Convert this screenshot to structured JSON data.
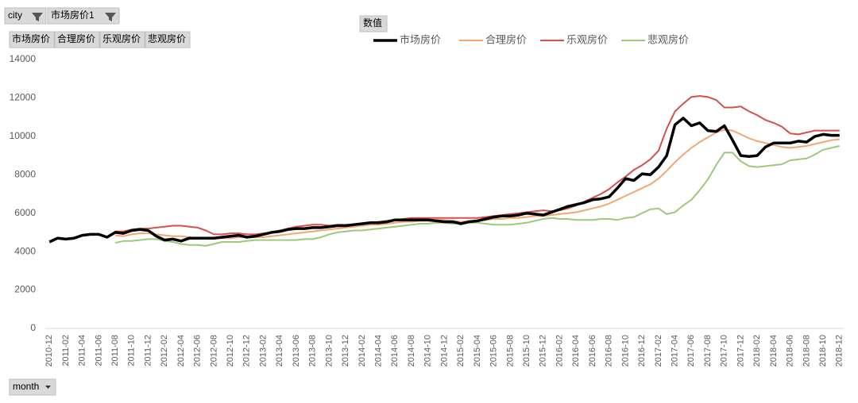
{
  "ui": {
    "filters": [
      "city",
      "市场房价1"
    ],
    "fields": [
      "市场房价",
      "合理房价",
      "乐观房价",
      "悲观房价"
    ],
    "values_label": "数值",
    "axis_field": "month"
  },
  "chart_data": {
    "type": "line",
    "categories": [
      "2010-12",
      null,
      "2011-02",
      null,
      "2011-04",
      null,
      "2011-06",
      null,
      "2011-08",
      null,
      "2011-10",
      null,
      "2011-12",
      null,
      "2012-02",
      null,
      "2012-04",
      null,
      "2012-06",
      null,
      "2012-08",
      null,
      "2012-10",
      null,
      "2012-12",
      null,
      "2013-02",
      null,
      "2013-04",
      null,
      "2013-06",
      null,
      "2013-08",
      null,
      "2013-10",
      null,
      "2013-12",
      null,
      "2014-02",
      null,
      "2014-04",
      null,
      "2014-06",
      null,
      "2014-08",
      null,
      "2014-10",
      null,
      "2014-12",
      null,
      "2015-02",
      null,
      "2015-04",
      null,
      "2015-06",
      null,
      "2015-08",
      null,
      "2015-10",
      null,
      "2015-12",
      null,
      "2016-02",
      null,
      "2016-04",
      null,
      "2016-06",
      null,
      "2016-08",
      null,
      "2016-10",
      null,
      "2016-12",
      null,
      "2017-02",
      null,
      "2017-04",
      null,
      "2017-06",
      null,
      "2017-08",
      null,
      "2017-10",
      null,
      "2017-12",
      null,
      "2018-02",
      null,
      "2018-04",
      null,
      "2018-06",
      null,
      "2018-08",
      null,
      "2018-10",
      null,
      "2018-12"
    ],
    "series": [
      {
        "name": "市场房价",
        "color": "#000000",
        "width": 3.5,
        "values": [
          4500,
          4700,
          4650,
          4700,
          4850,
          4900,
          4900,
          4750,
          5000,
          4950,
          5100,
          5150,
          5100,
          4800,
          4600,
          4650,
          4550,
          4700,
          4700,
          4700,
          4700,
          4750,
          4800,
          4850,
          4750,
          4800,
          4900,
          5000,
          5050,
          5150,
          5200,
          5200,
          5250,
          5250,
          5300,
          5350,
          5350,
          5400,
          5450,
          5500,
          5500,
          5550,
          5650,
          5650,
          5650,
          5650,
          5650,
          5600,
          5550,
          5550,
          5450,
          5550,
          5600,
          5700,
          5800,
          5850,
          5850,
          5900,
          6000,
          5950,
          5900,
          6050,
          6200,
          6350,
          6450,
          6550,
          6700,
          6750,
          6850,
          7300,
          7800,
          7700,
          8050,
          8000,
          8400,
          9000,
          10600,
          10950,
          10550,
          10700,
          10300,
          10250,
          10550,
          9800,
          9000,
          8950,
          9000,
          9450,
          9650,
          9650,
          9650,
          9750,
          9700,
          10000,
          10100,
          10050,
          10050
        ]
      },
      {
        "name": "合理房价",
        "color": "#f4a672",
        "width": 2,
        "values": [
          null,
          null,
          null,
          null,
          null,
          null,
          null,
          null,
          4850,
          4800,
          4900,
          4950,
          4950,
          4900,
          4850,
          4800,
          4800,
          4750,
          4700,
          4700,
          4700,
          4700,
          4700,
          4750,
          4750,
          4750,
          4750,
          4800,
          4850,
          4900,
          4950,
          5000,
          5050,
          5100,
          5150,
          5200,
          5250,
          5300,
          5350,
          5400,
          5400,
          5450,
          5500,
          5550,
          5550,
          5600,
          5600,
          5650,
          5650,
          5600,
          5550,
          5600,
          5600,
          5650,
          5700,
          5700,
          5750,
          5750,
          5800,
          5850,
          5850,
          5900,
          5950,
          6000,
          6050,
          6150,
          6250,
          6350,
          6500,
          6700,
          6900,
          7100,
          7300,
          7500,
          7800,
          8200,
          8650,
          9050,
          9400,
          9700,
          9950,
          10200,
          10350,
          10300,
          10100,
          9900,
          9750,
          9650,
          9550,
          9450,
          9400,
          9450,
          9500,
          9600,
          9700,
          9800,
          9850
        ]
      },
      {
        "name": "乐观房价",
        "color": "#d6504c",
        "width": 2,
        "values": [
          null,
          null,
          null,
          null,
          null,
          null,
          null,
          null,
          5050,
          5050,
          5150,
          5200,
          5200,
          5250,
          5300,
          5350,
          5350,
          5300,
          5250,
          5100,
          4900,
          4900,
          4950,
          4950,
          4900,
          4900,
          4950,
          5000,
          5100,
          5200,
          5300,
          5350,
          5400,
          5400,
          5350,
          5400,
          5400,
          5400,
          5450,
          5500,
          5550,
          5600,
          5650,
          5700,
          5750,
          5750,
          5750,
          5750,
          5750,
          5750,
          5750,
          5750,
          5750,
          5800,
          5850,
          5900,
          5950,
          6000,
          6050,
          6100,
          6150,
          6100,
          6150,
          6250,
          6400,
          6600,
          6800,
          7000,
          7250,
          7600,
          7900,
          8250,
          8500,
          8800,
          9250,
          10400,
          11300,
          11700,
          12050,
          12100,
          12050,
          11900,
          11500,
          11500,
          11550,
          11300,
          11100,
          10850,
          10700,
          10500,
          10150,
          10100,
          10200,
          10300,
          10300,
          10300,
          10300
        ]
      },
      {
        "name": "悲观房价",
        "color": "#9cc97a",
        "width": 2,
        "values": [
          null,
          null,
          null,
          null,
          null,
          null,
          null,
          null,
          4450,
          4550,
          4550,
          4600,
          4650,
          4650,
          4550,
          4500,
          4400,
          4350,
          4350,
          4300,
          4400,
          4500,
          4500,
          4500,
          4550,
          4600,
          4600,
          4600,
          4600,
          4600,
          4600,
          4650,
          4650,
          4750,
          4900,
          5000,
          5050,
          5100,
          5100,
          5150,
          5200,
          5250,
          5300,
          5350,
          5400,
          5450,
          5450,
          5500,
          5500,
          5450,
          5500,
          5500,
          5500,
          5450,
          5400,
          5400,
          5400,
          5450,
          5500,
          5600,
          5700,
          5750,
          5700,
          5700,
          5650,
          5650,
          5650,
          5700,
          5700,
          5650,
          5750,
          5800,
          6000,
          6200,
          6250,
          5950,
          6050,
          6400,
          6700,
          7200,
          7750,
          8500,
          9150,
          9150,
          8700,
          8450,
          8400,
          8450,
          8500,
          8550,
          8750,
          8800,
          8850,
          9050,
          9300,
          9400,
          9500
        ]
      }
    ],
    "ylim": [
      0,
      14000
    ],
    "yticks": [
      0,
      2000,
      4000,
      6000,
      8000,
      10000,
      12000,
      14000
    ],
    "grid": false
  }
}
